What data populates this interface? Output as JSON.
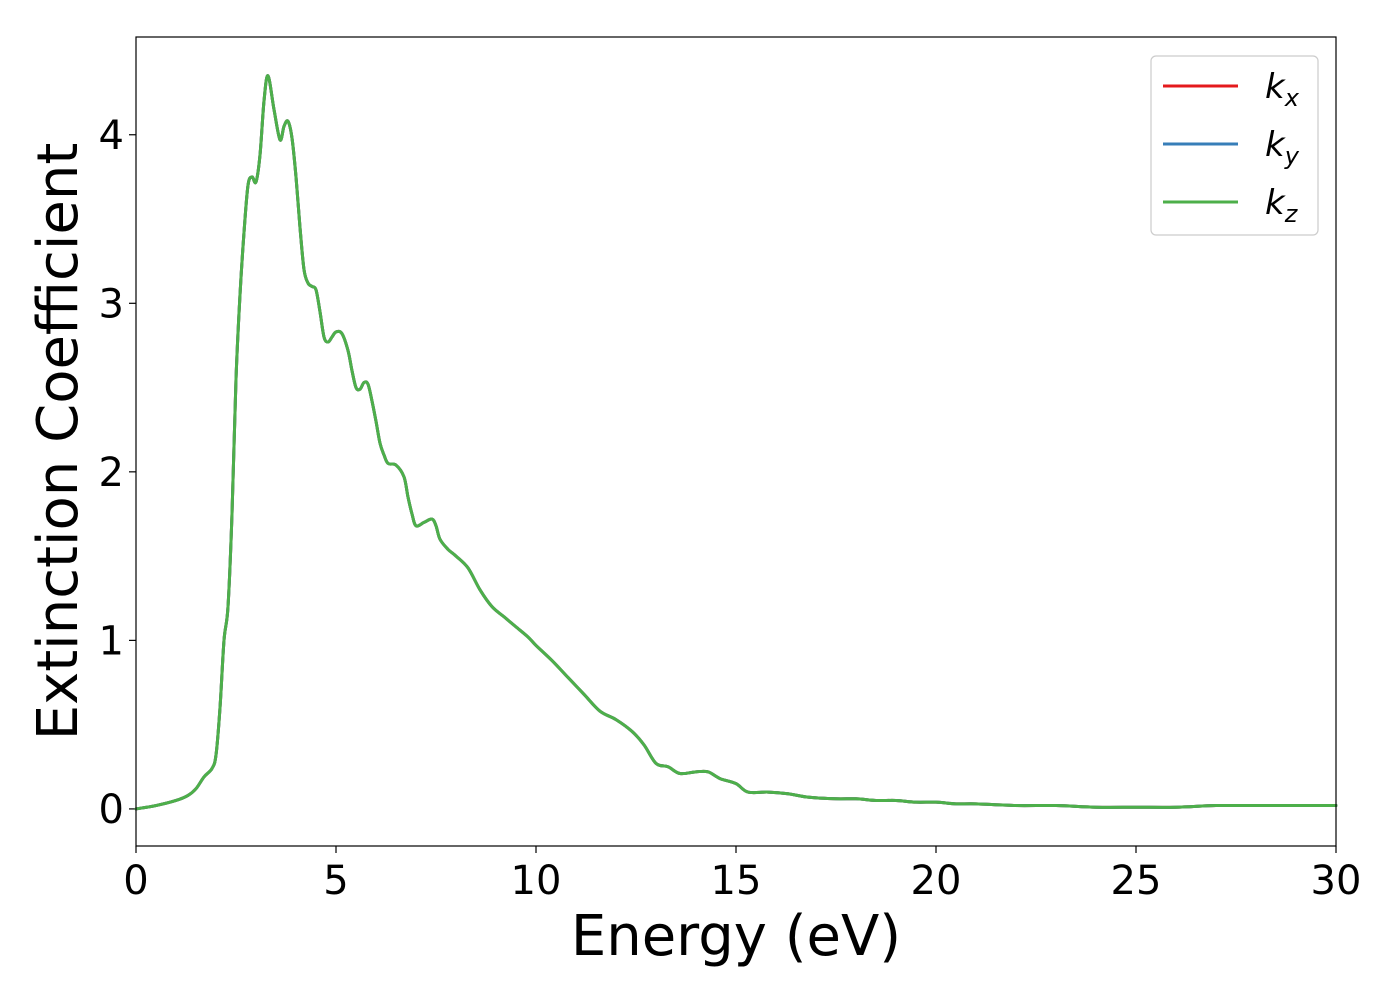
{
  "chart_data": {
    "type": "line",
    "xlabel": "Energy (eV)",
    "ylabel": "Extinction Coefficient",
    "xlim": [
      0,
      30
    ],
    "ylim": [
      -0.22,
      4.58
    ],
    "xticks": [
      0,
      5,
      10,
      15,
      20,
      25,
      30
    ],
    "xtick_labels": [
      "0",
      "5",
      "10",
      "15",
      "20",
      "25",
      "30"
    ],
    "yticks": [
      0,
      1,
      2,
      3,
      4
    ],
    "ytick_labels": [
      "0",
      "1",
      "2",
      "3",
      "4"
    ],
    "grid": false,
    "legend_position": "top-right",
    "x": [
      0,
      0.5,
      1.0,
      1.3,
      1.5,
      1.7,
      1.9,
      2.0,
      2.1,
      2.2,
      2.3,
      2.4,
      2.5,
      2.6,
      2.7,
      2.8,
      2.9,
      3.0,
      3.1,
      3.2,
      3.3,
      3.45,
      3.6,
      3.7,
      3.8,
      3.9,
      4.0,
      4.1,
      4.2,
      4.3,
      4.4,
      4.5,
      4.6,
      4.7,
      4.8,
      4.9,
      5.0,
      5.15,
      5.3,
      5.4,
      5.5,
      5.6,
      5.7,
      5.8,
      5.9,
      6.0,
      6.1,
      6.2,
      6.3,
      6.5,
      6.7,
      6.8,
      6.9,
      7.0,
      7.2,
      7.4,
      7.5,
      7.6,
      7.8,
      8.0,
      8.3,
      8.6,
      8.9,
      9.2,
      9.5,
      9.8,
      10.0,
      10.4,
      10.8,
      11.2,
      11.6,
      12.0,
      12.4,
      12.7,
      13.0,
      13.3,
      13.6,
      14.0,
      14.3,
      14.6,
      15.0,
      15.3,
      15.8,
      16.3,
      16.8,
      17.5,
      18.0,
      18.5,
      19.0,
      19.5,
      20.0,
      20.5,
      21.0,
      22.0,
      23.0,
      24.0,
      25.0,
      26.0,
      27.0,
      28.0,
      29.0,
      30.0
    ],
    "series": [
      {
        "name": "k_x",
        "label_main": "k",
        "label_sub": "x",
        "color": "#e41a1c",
        "values": [
          0.0,
          0.02,
          0.05,
          0.08,
          0.12,
          0.19,
          0.24,
          0.32,
          0.6,
          1.0,
          1.2,
          1.75,
          2.55,
          3.05,
          3.42,
          3.7,
          3.75,
          3.72,
          3.88,
          4.2,
          4.35,
          4.15,
          3.97,
          4.05,
          4.08,
          3.98,
          3.75,
          3.45,
          3.2,
          3.12,
          3.1,
          3.08,
          2.95,
          2.8,
          2.77,
          2.8,
          2.83,
          2.82,
          2.72,
          2.6,
          2.5,
          2.49,
          2.53,
          2.52,
          2.42,
          2.3,
          2.17,
          2.1,
          2.05,
          2.04,
          1.97,
          1.85,
          1.75,
          1.68,
          1.7,
          1.72,
          1.68,
          1.6,
          1.54,
          1.5,
          1.43,
          1.3,
          1.2,
          1.14,
          1.08,
          1.02,
          0.97,
          0.88,
          0.78,
          0.68,
          0.58,
          0.53,
          0.46,
          0.38,
          0.27,
          0.25,
          0.21,
          0.22,
          0.22,
          0.18,
          0.15,
          0.1,
          0.1,
          0.09,
          0.07,
          0.06,
          0.06,
          0.05,
          0.05,
          0.04,
          0.04,
          0.03,
          0.03,
          0.02,
          0.02,
          0.01,
          0.01,
          0.01,
          0.02,
          0.02,
          0.02,
          0.02
        ]
      },
      {
        "name": "k_y",
        "label_main": "k",
        "label_sub": "y",
        "color": "#377eb8",
        "values": [
          0.0,
          0.02,
          0.05,
          0.08,
          0.12,
          0.19,
          0.24,
          0.32,
          0.6,
          1.0,
          1.2,
          1.75,
          2.55,
          3.05,
          3.42,
          3.7,
          3.75,
          3.72,
          3.88,
          4.2,
          4.35,
          4.15,
          3.97,
          4.05,
          4.08,
          3.98,
          3.75,
          3.45,
          3.2,
          3.12,
          3.1,
          3.08,
          2.95,
          2.8,
          2.77,
          2.8,
          2.83,
          2.82,
          2.72,
          2.6,
          2.5,
          2.49,
          2.53,
          2.52,
          2.42,
          2.3,
          2.17,
          2.1,
          2.05,
          2.04,
          1.97,
          1.85,
          1.75,
          1.68,
          1.7,
          1.72,
          1.68,
          1.6,
          1.54,
          1.5,
          1.43,
          1.3,
          1.2,
          1.14,
          1.08,
          1.02,
          0.97,
          0.88,
          0.78,
          0.68,
          0.58,
          0.53,
          0.46,
          0.38,
          0.27,
          0.25,
          0.21,
          0.22,
          0.22,
          0.18,
          0.15,
          0.1,
          0.1,
          0.09,
          0.07,
          0.06,
          0.06,
          0.05,
          0.05,
          0.04,
          0.04,
          0.03,
          0.03,
          0.02,
          0.02,
          0.01,
          0.01,
          0.01,
          0.02,
          0.02,
          0.02,
          0.02
        ]
      },
      {
        "name": "k_z",
        "label_main": "k",
        "label_sub": "z",
        "color": "#4daf4a",
        "values": [
          0.0,
          0.02,
          0.05,
          0.08,
          0.12,
          0.19,
          0.24,
          0.32,
          0.6,
          1.0,
          1.2,
          1.75,
          2.55,
          3.05,
          3.42,
          3.7,
          3.75,
          3.72,
          3.88,
          4.2,
          4.35,
          4.15,
          3.97,
          4.05,
          4.08,
          3.98,
          3.75,
          3.45,
          3.2,
          3.12,
          3.1,
          3.08,
          2.95,
          2.8,
          2.77,
          2.8,
          2.83,
          2.82,
          2.72,
          2.6,
          2.5,
          2.49,
          2.53,
          2.52,
          2.42,
          2.3,
          2.17,
          2.1,
          2.05,
          2.04,
          1.97,
          1.85,
          1.75,
          1.68,
          1.7,
          1.72,
          1.68,
          1.6,
          1.54,
          1.5,
          1.43,
          1.3,
          1.2,
          1.14,
          1.08,
          1.02,
          0.97,
          0.88,
          0.78,
          0.68,
          0.58,
          0.53,
          0.46,
          0.38,
          0.27,
          0.25,
          0.21,
          0.22,
          0.22,
          0.18,
          0.15,
          0.1,
          0.1,
          0.09,
          0.07,
          0.06,
          0.06,
          0.05,
          0.05,
          0.04,
          0.04,
          0.03,
          0.03,
          0.02,
          0.02,
          0.01,
          0.01,
          0.01,
          0.02,
          0.02,
          0.02,
          0.02
        ]
      }
    ]
  }
}
